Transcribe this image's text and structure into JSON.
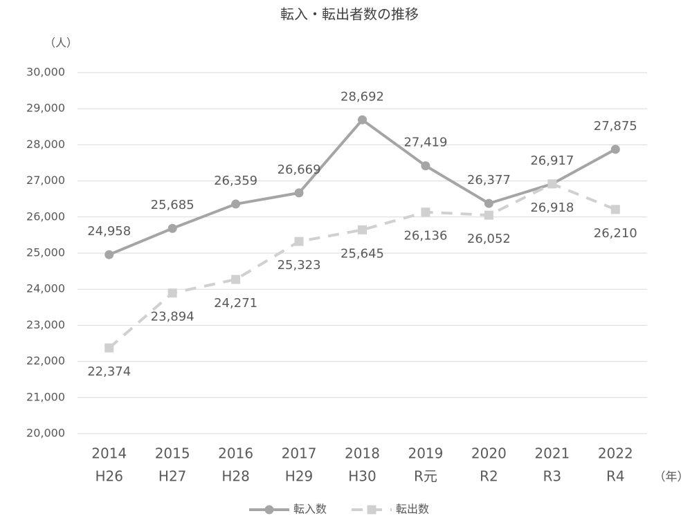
{
  "chart_data": {
    "type": "line",
    "title": "転入・転出者数の推移",
    "y_label": "（人）",
    "x_label": "（年）",
    "categories": [
      [
        "2014",
        "H26"
      ],
      [
        "2015",
        "H27"
      ],
      [
        "2016",
        "H28"
      ],
      [
        "2017",
        "H29"
      ],
      [
        "2018",
        "H30"
      ],
      [
        "2019",
        "R元"
      ],
      [
        "2020",
        "R2"
      ],
      [
        "2021",
        "R3"
      ],
      [
        "2022",
        "R4"
      ]
    ],
    "series": [
      {
        "name": "転入数",
        "color": "#a5a5a5",
        "marker": "circle",
        "line_style": "solid",
        "values": [
          24958,
          25685,
          26359,
          26669,
          28692,
          27419,
          26377,
          26917,
          27875
        ],
        "value_labels": [
          "24,958",
          "25,685",
          "26,359",
          "26,669",
          "28,692",
          "27,419",
          "26,377",
          "26,917",
          "27,875"
        ]
      },
      {
        "name": "転出数",
        "color": "#d0d0d0",
        "marker": "square",
        "line_style": "dashed",
        "values": [
          22374,
          23894,
          24271,
          25323,
          25645,
          26136,
          26052,
          26918,
          26210
        ],
        "value_labels": [
          "22,374",
          "23,894",
          "24,271",
          "25,323",
          "25,645",
          "26,136",
          "26,052",
          "26,918",
          "26,210"
        ]
      }
    ],
    "ylim": [
      20000,
      30000
    ],
    "yticks": [
      {
        "value": 20000,
        "label": "20,000"
      },
      {
        "value": 21000,
        "label": "21,000"
      },
      {
        "value": 22000,
        "label": "22,000"
      },
      {
        "value": 23000,
        "label": "23,000"
      },
      {
        "value": 24000,
        "label": "24,000"
      },
      {
        "value": 25000,
        "label": "25,000"
      },
      {
        "value": 26000,
        "label": "26,000"
      },
      {
        "value": 27000,
        "label": "27,000"
      },
      {
        "value": 28000,
        "label": "28,000"
      },
      {
        "value": 29000,
        "label": "29,000"
      },
      {
        "value": 30000,
        "label": "30,000"
      }
    ],
    "grid": true,
    "legend": "bottom"
  }
}
